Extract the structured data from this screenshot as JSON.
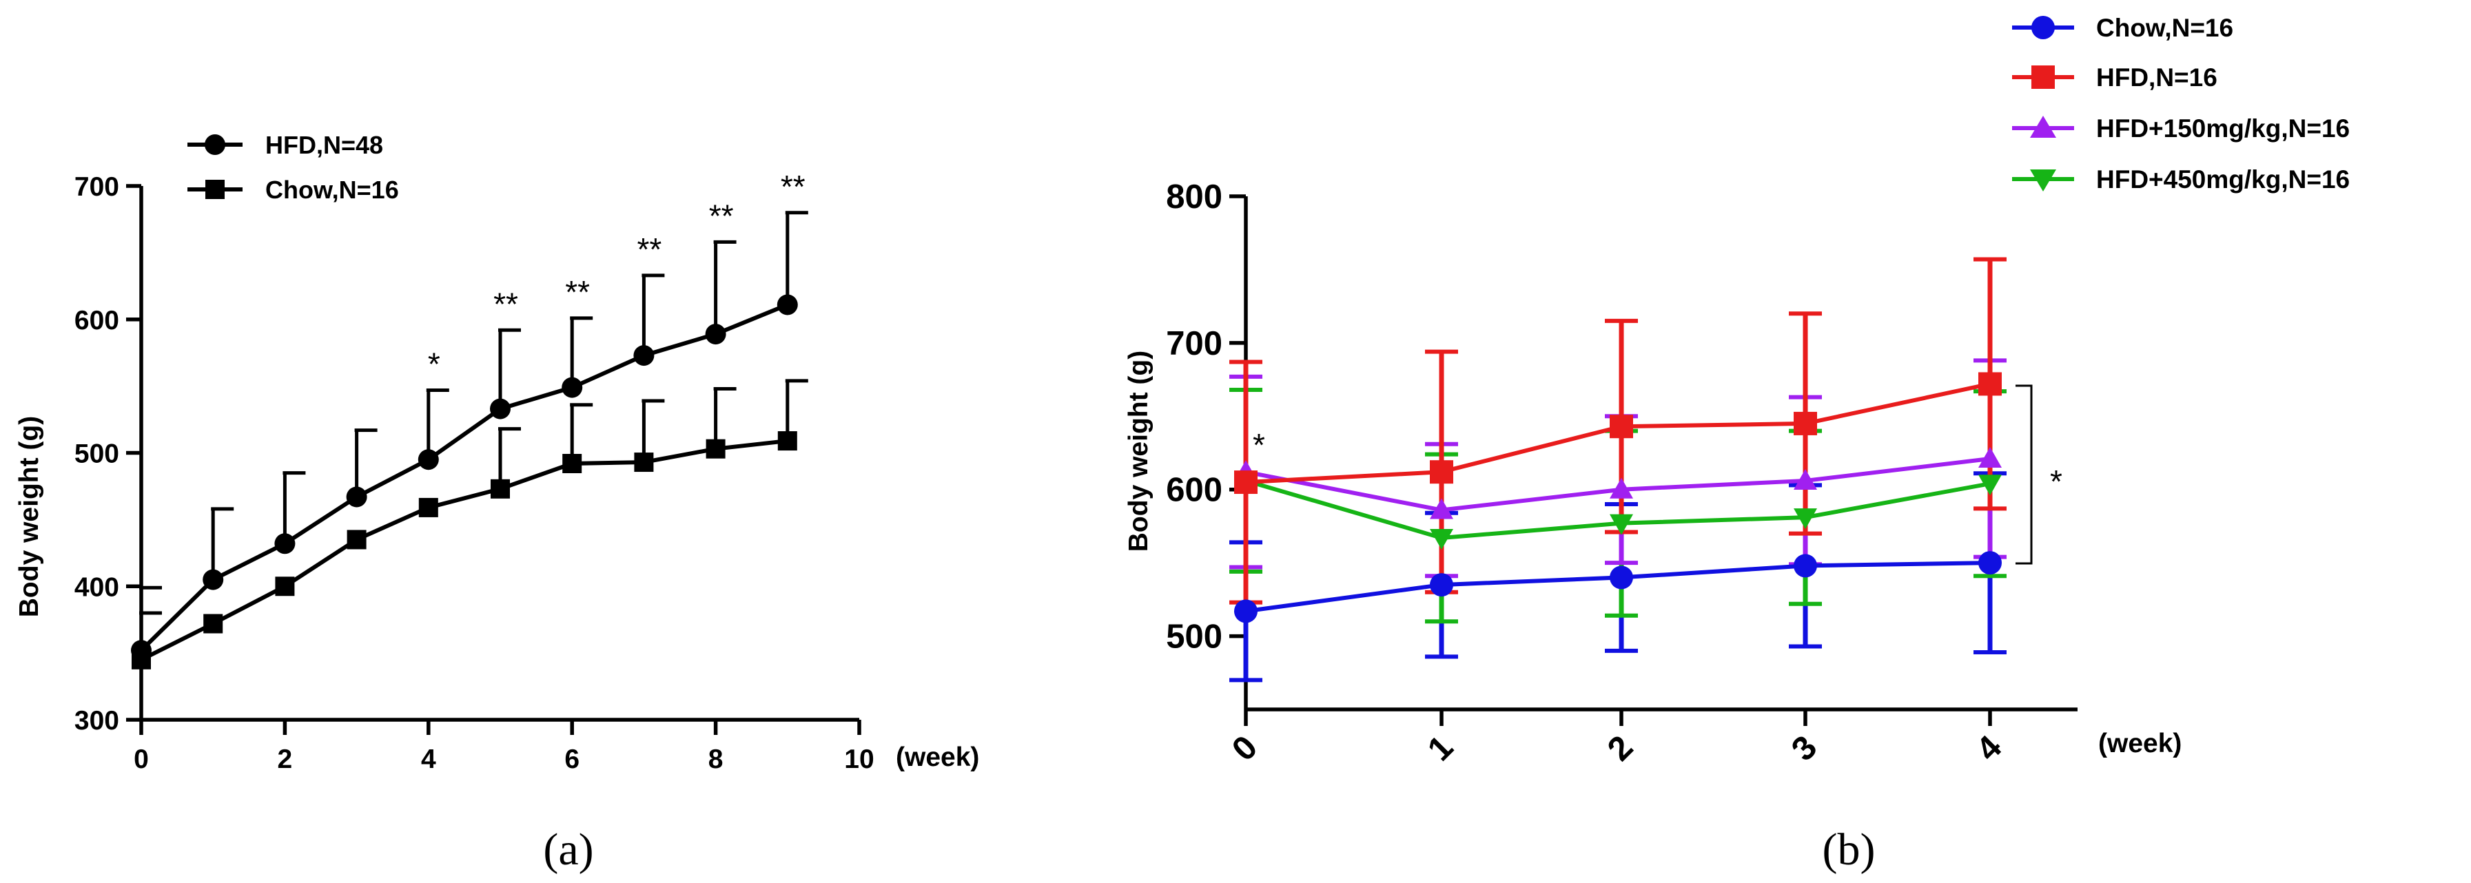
{
  "chart_data": [
    {
      "type": "line",
      "panel_label": "(a)",
      "xlabel": "(week)",
      "ylabel": "Body weight (g)",
      "xlim": [
        0,
        10
      ],
      "ylim": [
        300,
        700
      ],
      "xticks": [
        "0",
        "2",
        "4",
        "6",
        "8",
        "10"
      ],
      "yticks": [
        "300",
        "400",
        "500",
        "600",
        "700"
      ],
      "legend_position": "top-left",
      "series": [
        {
          "name": "HFD,N=48",
          "marker": "circle",
          "color": "#000000",
          "x": [
            0,
            1,
            2,
            3,
            4,
            5,
            6,
            7,
            8,
            9
          ],
          "values": [
            352,
            405,
            432,
            467,
            495,
            533,
            549,
            573,
            589,
            611
          ],
          "error": [
            47,
            53,
            53,
            50,
            52,
            59,
            52,
            60,
            69,
            69
          ]
        },
        {
          "name": "Chow,N=16",
          "marker": "square",
          "color": "#000000",
          "x": [
            0,
            1,
            2,
            3,
            4,
            5,
            6,
            7,
            8,
            9
          ],
          "values": [
            345,
            372,
            400,
            435,
            459,
            473,
            492,
            493,
            503,
            509
          ],
          "error": [
            35,
            0,
            0,
            0,
            0,
            45,
            44,
            46,
            45,
            45
          ]
        }
      ],
      "annotations": [
        {
          "x": 4,
          "text": "*"
        },
        {
          "x": 5,
          "text": "**"
        },
        {
          "x": 6,
          "text": "**"
        },
        {
          "x": 7,
          "text": "**"
        },
        {
          "x": 8,
          "text": "**"
        },
        {
          "x": 9,
          "text": "**"
        }
      ]
    },
    {
      "type": "line",
      "panel_label": "(b)",
      "xlabel": "(week)",
      "ylabel": "Body weight (g)",
      "xlim": [
        0,
        4
      ],
      "ylim": [
        450,
        800
      ],
      "categories": [
        "0",
        "1",
        "2",
        "3",
        "4"
      ],
      "yticks": [
        "500",
        "600",
        "700",
        "800"
      ],
      "legend_position": "top-right",
      "series": [
        {
          "name": "Chow,N=16",
          "marker": "circle",
          "color": "#1010e0",
          "values": [
            517,
            535,
            540,
            548,
            550
          ],
          "error": [
            47,
            49,
            50,
            55,
            61
          ]
        },
        {
          "name": "HFD,N=16",
          "marker": "square",
          "color": "#e81c1c",
          "values": [
            605,
            612,
            643,
            645,
            672
          ],
          "error": [
            82,
            82,
            72,
            75,
            85
          ]
        },
        {
          "name": "HFD+150mg/kg,N=16",
          "marker": "triangle-up",
          "color": "#a020f0",
          "values": [
            612,
            586,
            600,
            606,
            621
          ],
          "error": [
            65,
            45,
            50,
            57,
            67
          ]
        },
        {
          "name": "HFD+450mg/kg,N=16",
          "marker": "triangle-down",
          "color": "#16b416",
          "values": [
            606,
            567,
            577,
            581,
            604
          ],
          "error": [
            62,
            57,
            63,
            59,
            63
          ]
        }
      ],
      "annotations": [
        {
          "x": 0,
          "text": "*"
        },
        {
          "text": "*",
          "bracket": true
        }
      ]
    }
  ]
}
